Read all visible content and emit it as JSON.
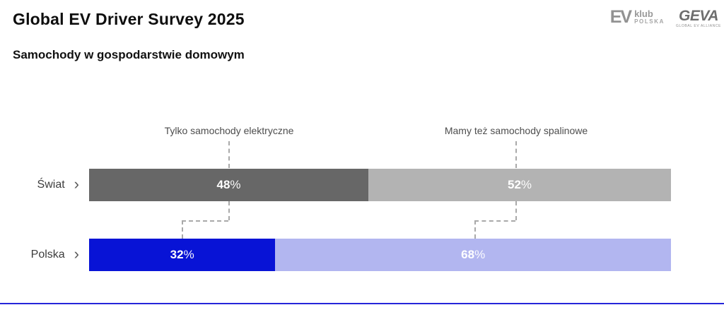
{
  "header": {
    "title": "Global EV Driver Survey 2025",
    "subtitle": "Samochody w gospodarstwie domowym"
  },
  "logos": {
    "ev_klub": {
      "mark": "EV",
      "line1": "klub",
      "line2": "POLSKA"
    },
    "geva": {
      "mark": "GEVA",
      "tagline": "GLOBAL EV ALLIANCE"
    }
  },
  "ui": {
    "chevron": "›"
  },
  "colors": {
    "world_ev": "#676767",
    "world_ice": "#b3b3b3",
    "poland_ev": "#0813d6",
    "poland_ice": "#b2b6f0",
    "accent_line": "#2626d9",
    "dash": "#a9a9a9"
  },
  "chart_data": {
    "type": "bar",
    "orientation": "horizontal_stacked",
    "title": "Samochody w gospodarstwie domowym",
    "categories": [
      "Świat",
      "Polska"
    ],
    "series": [
      {
        "name": "Tylko samochody elektryczne",
        "values": [
          48,
          32
        ]
      },
      {
        "name": "Mamy też samochody spalinowe",
        "values": [
          52,
          68
        ]
      }
    ],
    "value_suffix": "%",
    "xlim": [
      0,
      100
    ],
    "grid": false,
    "legend_position": "callouts-above-bars"
  }
}
